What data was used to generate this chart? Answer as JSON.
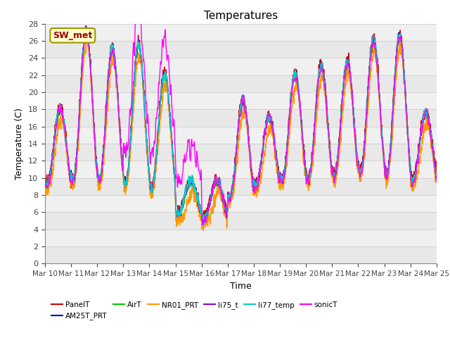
{
  "title": "Temperatures",
  "xlabel": "Time",
  "ylabel": "Temperature (C)",
  "ylim": [
    0,
    28
  ],
  "yticks": [
    0,
    2,
    4,
    6,
    8,
    10,
    12,
    14,
    16,
    18,
    20,
    22,
    24,
    26,
    28
  ],
  "num_days": 15,
  "xtick_labels": [
    "Mar 10",
    "Mar 11",
    "Mar 12",
    "Mar 13",
    "Mar 14",
    "Mar 15",
    "Mar 16",
    "Mar 17",
    "Mar 18",
    "Mar 19",
    "Mar 20",
    "Mar 21",
    "Mar 22",
    "Mar 23",
    "Mar 24",
    "Mar 25"
  ],
  "series_order": [
    "PanelT",
    "AM25T_PRT",
    "AirT",
    "NR01_PRT",
    "li75_t",
    "li77_temp",
    "sonicT"
  ],
  "series": {
    "PanelT": {
      "color": "#cc0000",
      "lw": 1.0
    },
    "AM25T_PRT": {
      "color": "#0000cc",
      "lw": 1.0
    },
    "AirT": {
      "color": "#00cc00",
      "lw": 1.0
    },
    "NR01_PRT": {
      "color": "#ff9900",
      "lw": 1.0
    },
    "li75_t": {
      "color": "#9900cc",
      "lw": 1.0
    },
    "li77_temp": {
      "color": "#00cccc",
      "lw": 1.0
    },
    "sonicT": {
      "color": "#ff00ff",
      "lw": 1.0
    }
  },
  "annotation_text": "SW_met",
  "bg_color": "#ffffff",
  "pts_per_day": 144,
  "day_base_temps": [
    9.0,
    9.5,
    9.5,
    9.0,
    8.5,
    5.5,
    5.0,
    7.5,
    9.0,
    9.5,
    9.5,
    10.0,
    10.5,
    10.0,
    9.5
  ],
  "day_amplitudes": [
    9.0,
    17.5,
    15.5,
    16.5,
    13.5,
    4.0,
    4.5,
    11.5,
    8.0,
    12.5,
    13.5,
    13.5,
    15.5,
    16.5,
    8.0
  ],
  "legend_order": [
    "PanelT",
    "AM25T_PRT",
    "AirT",
    "NR01_PRT",
    "li75_t",
    "li77_temp",
    "sonicT"
  ]
}
